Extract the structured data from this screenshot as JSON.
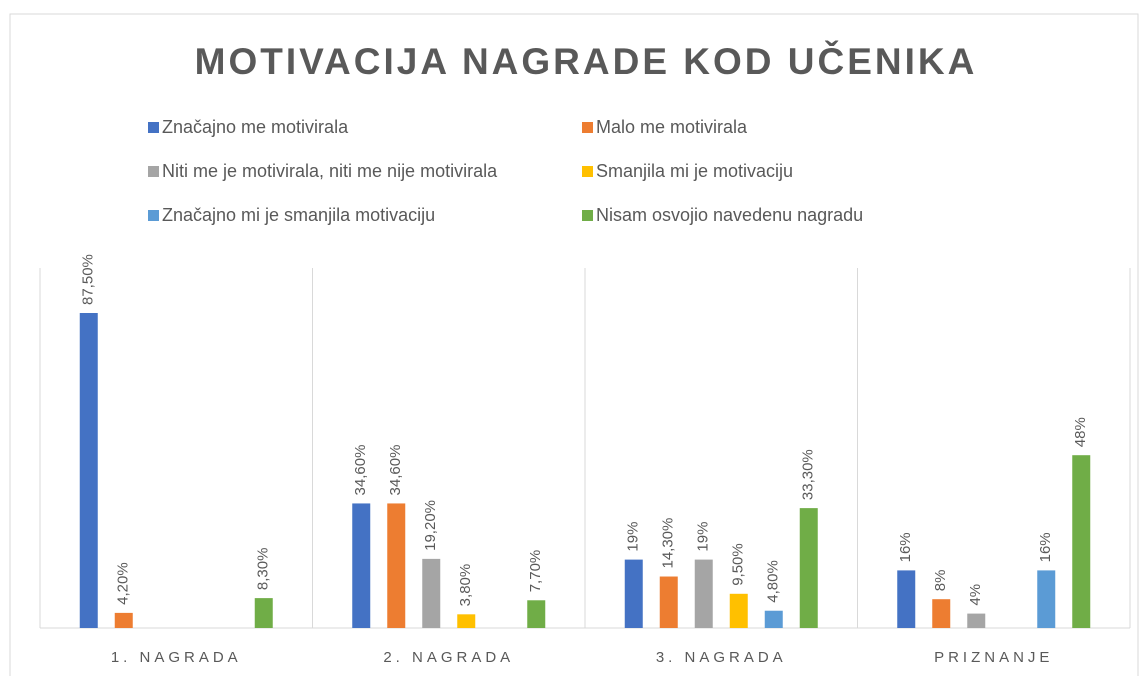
{
  "chart_data": {
    "type": "bar",
    "title": "MOTIVACIJA NAGRADE KOD UČENIKA",
    "categories": [
      "1. NAGRADA",
      "2. NAGRADA",
      "3. NAGRADA",
      "PRIZNANJE"
    ],
    "series": [
      {
        "name": "Značajno me motivirala",
        "color": "#4472c4",
        "values": [
          87.5,
          34.6,
          19,
          16
        ],
        "value_labels": [
          "87,50%",
          "34,60%",
          "19%",
          "16%"
        ]
      },
      {
        "name": "Malo me motivirala",
        "color": "#ed7d31",
        "values": [
          4.2,
          34.6,
          14.3,
          8
        ],
        "value_labels": [
          "4,20%",
          "34,60%",
          "14,30%",
          "8%"
        ]
      },
      {
        "name": "Niti me je motivirala, niti me nije motivirala",
        "color": "#a5a5a5",
        "values": [
          null,
          19.2,
          19,
          4
        ],
        "value_labels": [
          null,
          "19,20%",
          "19%",
          "4%"
        ]
      },
      {
        "name": "Smanjila mi je motivaciju",
        "color": "#ffc000",
        "values": [
          null,
          3.8,
          9.5,
          null
        ],
        "value_labels": [
          null,
          "3,80%",
          "9,50%",
          null
        ]
      },
      {
        "name": "Značajno mi je smanjila motivaciju",
        "color": "#5b9bd5",
        "values": [
          null,
          null,
          4.8,
          16
        ],
        "value_labels": [
          null,
          null,
          "4,80%",
          "16%"
        ]
      },
      {
        "name": "Nisam osvojio navedenu nagradu",
        "color": "#70ad47",
        "values": [
          8.3,
          7.7,
          33.3,
          48
        ],
        "value_labels": [
          "8,30%",
          "7,70%",
          "33,30%",
          "48%"
        ]
      }
    ],
    "ylim": [
      0,
      100
    ]
  }
}
